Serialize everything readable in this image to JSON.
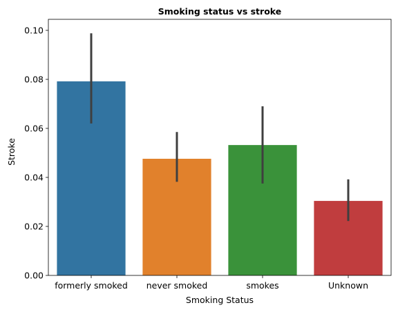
{
  "chart_data": {
    "type": "bar",
    "title": "Smoking status vs stroke",
    "xlabel": "Smoking Status",
    "ylabel": "Stroke",
    "categories": [
      "formerly smoked",
      "never smoked",
      "smokes",
      "Unknown"
    ],
    "values": [
      0.0792,
      0.0476,
      0.0532,
      0.0304
    ],
    "error_low": [
      0.062,
      0.0382,
      0.0375,
      0.0222
    ],
    "error_high": [
      0.0988,
      0.0585,
      0.069,
      0.0392
    ],
    "ylim": [
      0,
      0.1045
    ],
    "yticks": [
      "0.00",
      "0.02",
      "0.04",
      "0.06",
      "0.08",
      "0.10"
    ],
    "ytick_values": [
      0,
      0.02,
      0.04,
      0.06,
      0.08,
      0.1
    ],
    "colors": [
      "#3274a1",
      "#e1812c",
      "#3a923a",
      "#c03d3e"
    ],
    "errorbar_color": "#3f3f3f",
    "grid": false,
    "legend": "none"
  }
}
